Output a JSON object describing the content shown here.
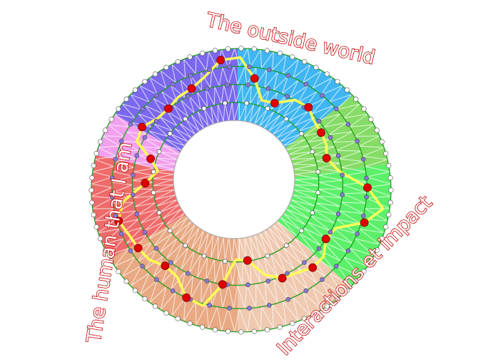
{
  "labels": {
    "top": "The outside world",
    "left": "The human that I am",
    "right": "Interactions et impact"
  },
  "colors": {
    "label_outline": "#c00000",
    "ring_lines": "#1e9e1e",
    "path": "#ffff55",
    "path_node": "#e00000",
    "inner_node": "#8877dd",
    "edge_node": "#ffffff",
    "sectors": [
      "#7b68ee",
      "#3fb6f2",
      "#86dc66",
      "#5cf06a",
      "#efc9b0",
      "#e8a983",
      "#ef6b6b",
      "#f2a0ee"
    ]
  }
}
